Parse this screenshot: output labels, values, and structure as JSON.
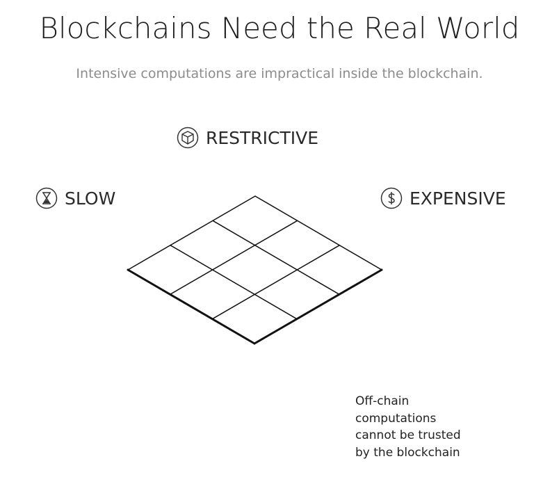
{
  "title": "Blockchains Need the Real World",
  "subtitle": "Intensive computations are impractical inside the blockchain.",
  "labels": {
    "restrictive": {
      "text": "RESTRICTIVE",
      "icon": "cube-icon"
    },
    "slow": {
      "text": "SLOW",
      "icon": "hourglass-icon"
    },
    "expensive": {
      "text": "EXPENSIVE",
      "icon": "dollar-icon"
    }
  },
  "note": [
    "Off-chain",
    "computations",
    "cannot be trusted",
    "by the blockchain"
  ]
}
